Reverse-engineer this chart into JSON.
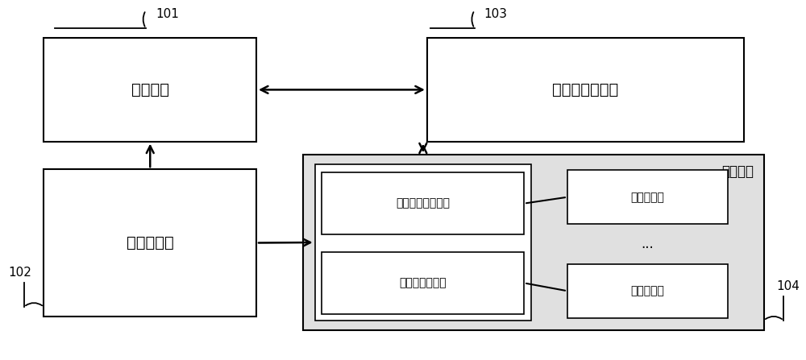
{
  "bg_color": "#ffffff",
  "box_edge_color": "#000000",
  "box_fill_color": "#ffffff",
  "light_gray_fill": "#e0e0e0",
  "text_color": "#000000",
  "arrow_color": "#000000",
  "label_101": "101",
  "label_102": "102",
  "label_103": "103",
  "label_104": "104",
  "box_jk": "监控模块",
  "box_czz": "充电站管理平台",
  "box_gpd": "供配电模块",
  "box_cdmk": "充电模块",
  "box_cdht": "充电后台控制单元",
  "box_rx": "柔性充电堆单元",
  "box_cdz1": "充电桩单元",
  "box_cdz2": "充电桩单元",
  "dots": "..."
}
